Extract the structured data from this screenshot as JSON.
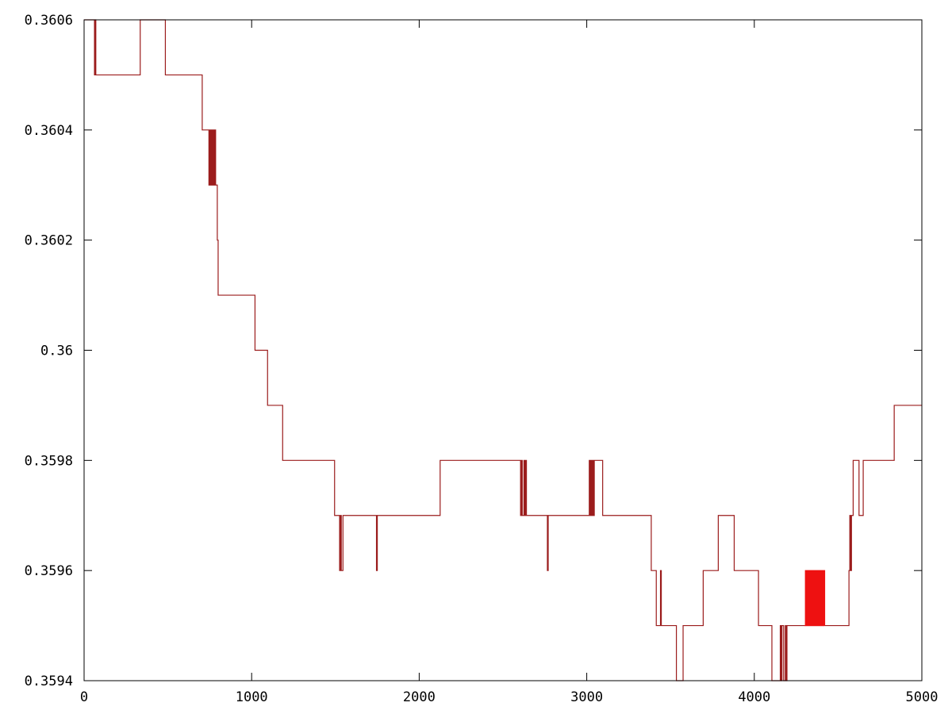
{
  "chart_data": {
    "type": "line",
    "title": "",
    "xlabel": "",
    "ylabel": "",
    "xlim": [
      0,
      5000
    ],
    "ylim": [
      0.3594,
      0.3606
    ],
    "grid": false,
    "legend": "none",
    "x_ticks": [
      {
        "value": 0,
        "label": "0"
      },
      {
        "value": 1000,
        "label": "1000"
      },
      {
        "value": 2000,
        "label": "2000"
      },
      {
        "value": 3000,
        "label": "3000"
      },
      {
        "value": 4000,
        "label": "4000"
      },
      {
        "value": 5000,
        "label": "5000"
      }
    ],
    "y_ticks": [
      {
        "value": 0.3594,
        "label": "0.3594"
      },
      {
        "value": 0.3596,
        "label": "0.3596"
      },
      {
        "value": 0.3598,
        "label": "0.3598"
      },
      {
        "value": 0.36,
        "label": "0.36"
      },
      {
        "value": 0.3602,
        "label": "0.3602"
      },
      {
        "value": 0.3604,
        "label": "0.3604"
      },
      {
        "value": 0.3606,
        "label": "0.3606"
      }
    ],
    "series": [
      {
        "color": "#9b1c1c",
        "x": [
          0,
          60,
          62,
          66,
          70,
          75,
          80,
          330,
          335,
          480,
          485,
          700,
          705,
          740,
          745,
          750,
          755,
          760,
          765,
          770,
          775,
          780,
          785,
          790,
          795,
          800,
          805,
          1015,
          1020,
          1090,
          1095,
          1180,
          1185,
          1490,
          1495,
          1520,
          1525,
          1530,
          1535,
          1545,
          1550,
          1740,
          1745,
          1750,
          2120,
          2125,
          2600,
          2605,
          2610,
          2615,
          2625,
          2630,
          2635,
          2640,
          2760,
          2765,
          2770,
          3010,
          3015,
          3020,
          3025,
          3030,
          3035,
          3040,
          3045,
          3050,
          3090,
          3095,
          3380,
          3385,
          3410,
          3415,
          3440,
          3445,
          3530,
          3535,
          3570,
          3575,
          3690,
          3695,
          3780,
          3785,
          3850,
          3855,
          3875,
          3880,
          4020,
          4025,
          4100,
          4105,
          4150,
          4155,
          4160,
          4165,
          4175,
          4180,
          4185,
          4190,
          4195,
          4200,
          4560,
          4565,
          4570,
          4575,
          4580,
          4585,
          4590,
          4595,
          4620,
          4625,
          4640,
          4645,
          4650,
          4655,
          4660,
          4665,
          4830,
          4835,
          5000
        ],
        "y": [
          0.3606,
          0.3606,
          0.3605,
          0.3606,
          0.3605,
          0.3605,
          0.3605,
          0.3605,
          0.3606,
          0.3606,
          0.3605,
          0.3605,
          0.3604,
          0.3604,
          0.3603,
          0.3604,
          0.3603,
          0.3604,
          0.3603,
          0.3604,
          0.3603,
          0.3604,
          0.3603,
          0.3603,
          0.3602,
          0.3601,
          0.3601,
          0.3601,
          0.36,
          0.36,
          0.3599,
          0.3599,
          0.3598,
          0.3598,
          0.3597,
          0.3597,
          0.3596,
          0.3597,
          0.3596,
          0.3597,
          0.3597,
          0.3597,
          0.3596,
          0.3597,
          0.3597,
          0.3598,
          0.3598,
          0.3597,
          0.3598,
          0.3597,
          0.3598,
          0.3597,
          0.3598,
          0.3597,
          0.3597,
          0.3596,
          0.3597,
          0.3597,
          0.3598,
          0.3597,
          0.3598,
          0.3597,
          0.3598,
          0.3597,
          0.3598,
          0.3598,
          0.3598,
          0.3597,
          0.3597,
          0.3596,
          0.3596,
          0.3595,
          0.3596,
          0.3595,
          0.3595,
          0.3594,
          0.3594,
          0.3595,
          0.3595,
          0.3596,
          0.3596,
          0.3597,
          0.3597,
          0.3597,
          0.3597,
          0.3596,
          0.3596,
          0.3595,
          0.3595,
          0.3594,
          0.3594,
          0.3595,
          0.3594,
          0.3595,
          0.3594,
          0.3594,
          0.3595,
          0.3594,
          0.3595,
          0.3595,
          0.3595,
          0.3596,
          0.3597,
          0.3596,
          0.3597,
          0.3597,
          0.3598,
          0.3598,
          0.3598,
          0.3597,
          0.3597,
          0.3597,
          0.3598,
          0.3598,
          0.3598,
          0.3598,
          0.3598,
          0.3599,
          0.3599
        ]
      },
      {
        "color": "#ee1111",
        "x": [
          4300,
          4305,
          4310,
          4315,
          4320,
          4325,
          4330,
          4335,
          4340,
          4345,
          4350,
          4355,
          4360,
          4365,
          4370,
          4375,
          4380,
          4385,
          4390,
          4395,
          4400,
          4405,
          4410,
          4415,
          4420
        ],
        "y": [
          0.3595,
          0.3596,
          0.3595,
          0.3596,
          0.3595,
          0.3596,
          0.3595,
          0.3596,
          0.3595,
          0.3596,
          0.3595,
          0.3596,
          0.3595,
          0.3596,
          0.3595,
          0.3596,
          0.3595,
          0.3596,
          0.3595,
          0.3596,
          0.3595,
          0.3596,
          0.3595,
          0.3596,
          0.3595
        ]
      }
    ]
  }
}
